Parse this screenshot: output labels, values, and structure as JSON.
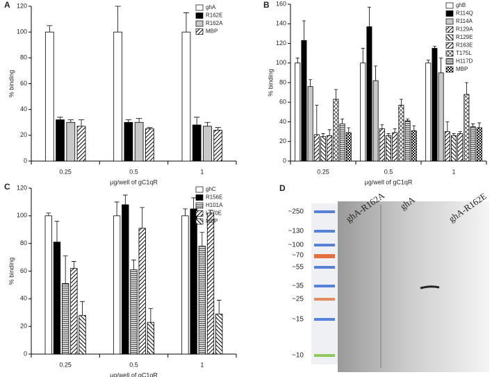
{
  "chart_data": [
    {
      "type": "bar",
      "panel": "A",
      "ylabel": "% binding",
      "xlabel": "μg/well of gC1qR",
      "categories": [
        "0.25",
        "0.5",
        "1"
      ],
      "ylim": [
        0,
        120
      ],
      "yticks": [
        0,
        20,
        40,
        60,
        80,
        100,
        120
      ],
      "legend": "top-right",
      "series": [
        {
          "name": "ghA",
          "color": "#ffffff",
          "pattern": "solid",
          "values": [
            100,
            100,
            100
          ],
          "errors": [
            5,
            20,
            15
          ]
        },
        {
          "name": "R162E",
          "color": "#000000",
          "pattern": "solid",
          "values": [
            32,
            30,
            28
          ],
          "errors": [
            2,
            2,
            6
          ]
        },
        {
          "name": "R162A",
          "color": "#c8c8c8",
          "pattern": "solid",
          "values": [
            30,
            30,
            27
          ],
          "errors": [
            2,
            3,
            3
          ]
        },
        {
          "name": "MBP",
          "color": "#000000",
          "pattern": "hatch",
          "values": [
            27,
            25,
            24
          ],
          "errors": [
            5,
            1,
            2
          ]
        }
      ]
    },
    {
      "type": "bar",
      "panel": "B",
      "ylabel": "% binding",
      "xlabel": "μg/well of gC1qR",
      "categories": [
        "0.25",
        "0.5",
        "1"
      ],
      "ylim": [
        0,
        160
      ],
      "yticks": [
        0,
        20,
        40,
        60,
        80,
        100,
        120,
        140,
        160
      ],
      "legend": "top-right",
      "series": [
        {
          "name": "ghB",
          "color": "#ffffff",
          "pattern": "solid",
          "values": [
            100,
            100,
            100
          ],
          "errors": [
            5,
            15,
            3
          ]
        },
        {
          "name": "R114Q",
          "color": "#000000",
          "pattern": "solid",
          "values": [
            123,
            137,
            115
          ],
          "errors": [
            20,
            20,
            2
          ]
        },
        {
          "name": "R114A",
          "color": "#c8c8c8",
          "pattern": "solid",
          "values": [
            76,
            82,
            90
          ],
          "errors": [
            7,
            15,
            15
          ]
        },
        {
          "name": "R129A",
          "color": "#000000",
          "pattern": "hatch",
          "values": [
            27,
            33,
            30
          ],
          "errors": [
            30,
            4,
            10
          ]
        },
        {
          "name": "R129E",
          "color": "#000000",
          "pattern": "backhatch",
          "values": [
            25,
            26,
            26
          ],
          "errors": [
            3,
            2,
            2
          ]
        },
        {
          "name": "R163E",
          "color": "#777777",
          "pattern": "hatch",
          "values": [
            26,
            29,
            28
          ],
          "errors": [
            6,
            4,
            2
          ]
        },
        {
          "name": "T175L",
          "color": "#000000",
          "pattern": "cross",
          "values": [
            63,
            57,
            68
          ],
          "errors": [
            10,
            6,
            12
          ]
        },
        {
          "name": "H117D",
          "color": "#000000",
          "pattern": "hlines",
          "values": [
            38,
            41,
            35
          ],
          "errors": [
            5,
            2,
            3
          ]
        },
        {
          "name": "MBP",
          "color": "#000000",
          "pattern": "checker",
          "values": [
            29,
            31,
            34
          ],
          "errors": [
            5,
            5,
            5
          ]
        }
      ]
    },
    {
      "type": "bar",
      "panel": "C",
      "ylabel": "% binding",
      "xlabel": "μg/well of gC1qR",
      "categories": [
        "0.25",
        "0.5",
        "1"
      ],
      "ylim": [
        0,
        120
      ],
      "yticks": [
        0,
        20,
        40,
        60,
        80,
        100,
        120
      ],
      "legend": "top-right",
      "series": [
        {
          "name": "ghC",
          "color": "#ffffff",
          "pattern": "solid",
          "values": [
            100,
            100,
            100
          ],
          "errors": [
            2,
            10,
            5
          ]
        },
        {
          "name": "R156E",
          "color": "#000000",
          "pattern": "solid",
          "values": [
            81,
            108,
            105
          ],
          "errors": [
            15,
            7,
            8
          ]
        },
        {
          "name": "H101A",
          "color": "#c8c8c8",
          "pattern": "hlines",
          "values": [
            51,
            61,
            78
          ],
          "errors": [
            20,
            7,
            10
          ]
        },
        {
          "name": "L170E",
          "color": "#000000",
          "pattern": "hatch",
          "values": [
            62,
            91,
            102
          ],
          "errors": [
            5,
            15,
            2
          ]
        },
        {
          "name": "MBP",
          "color": "#000000",
          "pattern": "backhatch",
          "values": [
            28,
            23,
            29
          ],
          "errors": [
            10,
            10,
            10
          ]
        }
      ]
    }
  ],
  "blot": {
    "panel": "D",
    "lanes": [
      "ghA-R162A",
      "ghA",
      "ghA-R162E"
    ],
    "markers": [
      {
        "label": "~250",
        "color": "#222222"
      },
      {
        "label": "~130",
        "color": "#222222"
      },
      {
        "label": "~100",
        "color": "#222222"
      },
      {
        "label": "~70",
        "color": "#d02020"
      },
      {
        "label": "~55",
        "color": "#222222"
      },
      {
        "label": "~35",
        "color": "#222222"
      },
      {
        "label": "~25",
        "color": "#d02020"
      },
      {
        "label": "~15",
        "color": "#222222"
      },
      {
        "label": "~10",
        "color": "#d02020"
      }
    ]
  }
}
